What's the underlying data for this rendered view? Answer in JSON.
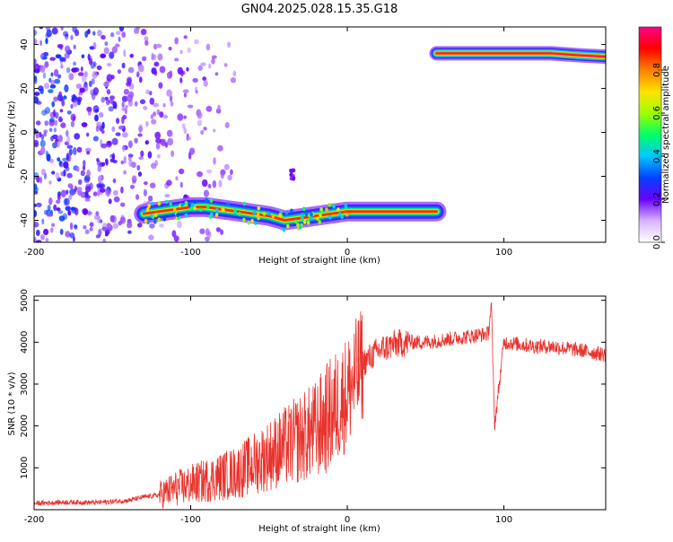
{
  "figure_title": "GN04.2025.028.15.35.G18",
  "chart_data": [
    {
      "type": "heatmap",
      "title": "GN04.2025.028.15.35.G18",
      "xlabel": "Height of straight line (km)",
      "ylabel": "Frequency (Hz)",
      "xlim": [
        -200,
        165
      ],
      "ylim": [
        -50,
        48
      ],
      "x_ticks": [
        -200,
        -100,
        0,
        100
      ],
      "y_ticks": [
        -40,
        -20,
        0,
        20,
        40
      ],
      "grid": false,
      "colorbar": {
        "label": "Normalized spectral amplitude",
        "range": [
          0,
          1
        ],
        "ticks": [
          0.0,
          0.2,
          0.4,
          0.6,
          0.8
        ],
        "tick_labels": [
          "0.0",
          "0.2",
          "0.4",
          "0.6",
          "0.8"
        ],
        "colormap": [
          "#ffffff",
          "#d6b4ff",
          "#6a00ff",
          "#0040ff",
          "#00c8ff",
          "#00ff64",
          "#a0ff00",
          "#ffe000",
          "#ff8000",
          "#ff0000",
          "#ff0088"
        ]
      },
      "tracks": [
        {
          "x": [
            -130,
            -120,
            -110,
            -100,
            -90,
            -80,
            -70,
            -60,
            -50,
            -40,
            -30,
            -20,
            -10,
            0,
            10,
            20,
            30,
            40,
            57
          ],
          "y": [
            -37,
            -36,
            -35,
            -34,
            -34,
            -35,
            -36,
            -37,
            -38,
            -40,
            -39,
            -38,
            -37,
            -36,
            -36,
            -36,
            -36,
            -36,
            -36
          ]
        },
        {
          "x": [
            57,
            70,
            80,
            90,
            100,
            110,
            120,
            130,
            140,
            150,
            165
          ],
          "y": [
            36,
            36,
            36,
            36,
            36,
            36,
            36,
            36,
            35.5,
            35,
            34.5
          ]
        }
      ]
    },
    {
      "type": "line",
      "xlabel": "Height of straight line (km)",
      "ylabel": "SNR (10 * v/v)",
      "xlim": [
        -200,
        165
      ],
      "ylim": [
        0,
        5100
      ],
      "x_ticks": [
        -200,
        -100,
        0,
        100
      ],
      "y_ticks": [
        1000,
        2000,
        3000,
        4000,
        5000
      ],
      "grid": false,
      "series": [
        {
          "color": "#e8322c",
          "x": [
            -200,
            -180,
            -160,
            -140,
            -130,
            -120,
            -110,
            -100,
            -90,
            -80,
            -70,
            -60,
            -50,
            -40,
            -30,
            -20,
            -15,
            -10,
            0,
            10,
            20,
            30,
            40,
            50,
            60,
            70,
            80,
            90,
            92,
            94,
            100,
            110,
            120,
            130,
            140,
            150,
            165
          ],
          "y": [
            150,
            180,
            170,
            220,
            300,
            350,
            500,
            600,
            700,
            800,
            900,
            1100,
            1300,
            1500,
            1700,
            1900,
            2100,
            2300,
            2800,
            3500,
            3800,
            3950,
            4000,
            4000,
            4050,
            4100,
            4150,
            4200,
            4900,
            2000,
            4000,
            3950,
            3900,
            3900,
            3850,
            3800,
            3700
          ]
        }
      ]
    }
  ]
}
